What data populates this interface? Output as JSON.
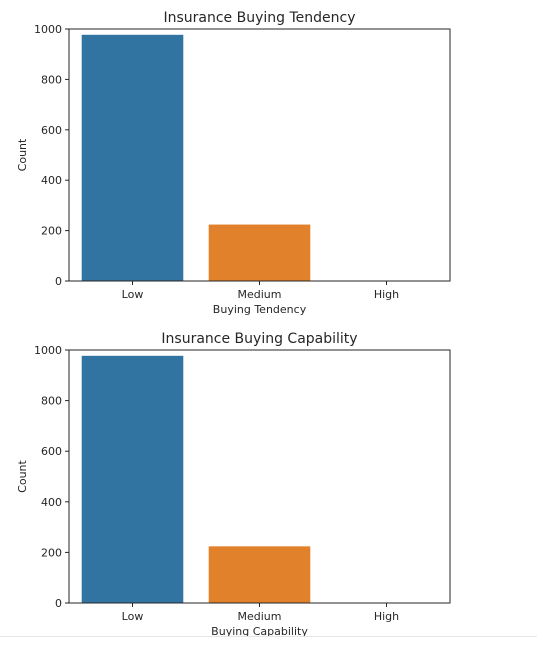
{
  "chart_data": [
    {
      "type": "bar",
      "title": "Insurance Buying Tendency",
      "xlabel": "Buying Tendency",
      "ylabel": "Count",
      "categories": [
        "Low",
        "Medium",
        "High"
      ],
      "values": [
        977,
        224,
        0
      ],
      "ylim": [
        0,
        1000
      ],
      "yticks": [
        0,
        200,
        400,
        600,
        800,
        1000
      ],
      "colors": [
        "#3274a1",
        "#e1812c",
        "#3a923a"
      ],
      "grid": false,
      "legend": "none"
    },
    {
      "type": "bar",
      "title": "Insurance Buying Capability",
      "xlabel": "Buying Capability",
      "ylabel": "Count",
      "categories": [
        "Low",
        "Medium",
        "High"
      ],
      "values": [
        977,
        224,
        0
      ],
      "ylim": [
        0,
        1000
      ],
      "yticks": [
        0,
        200,
        400,
        600,
        800,
        1000
      ],
      "colors": [
        "#3274a1",
        "#e1812c",
        "#3a923a"
      ],
      "grid": false,
      "legend": "none"
    }
  ]
}
